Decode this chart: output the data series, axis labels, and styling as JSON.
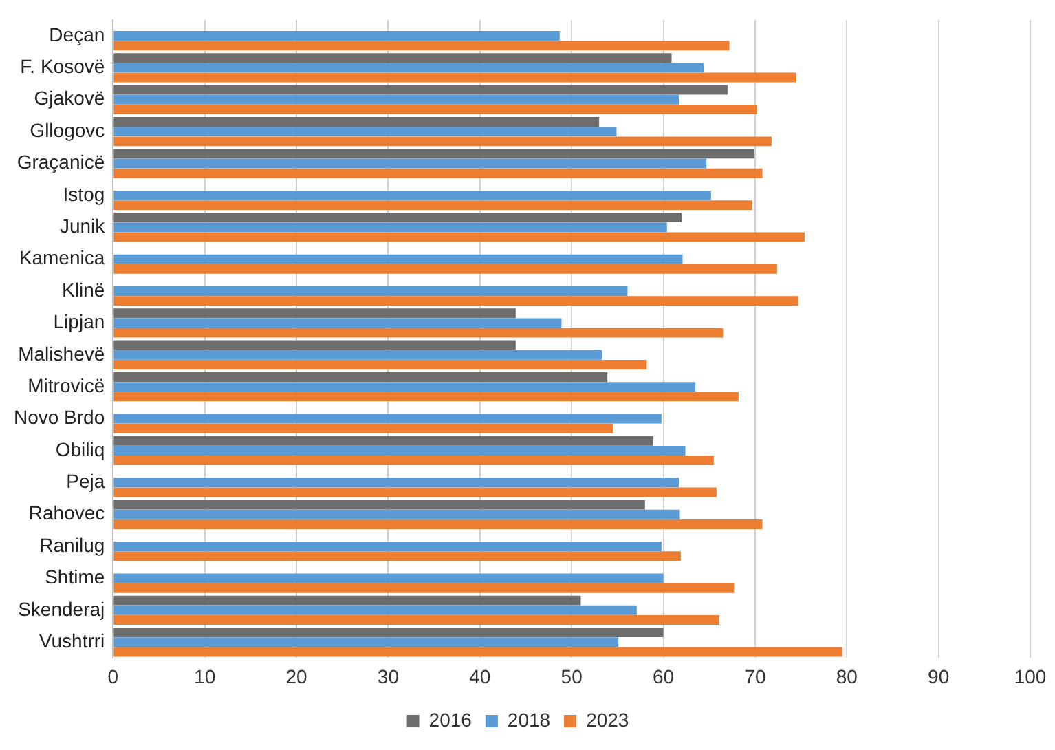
{
  "chart_data": {
    "type": "bar",
    "orientation": "horizontal",
    "categories": [
      "Deçan",
      "F. Kosovë",
      "Gjakovë",
      "Gllogovc",
      "Graçanicë",
      "Istog",
      "Junik",
      "Kamenica",
      "Klinë",
      "Lipjan",
      "Malishevë",
      "Mitrovicë",
      "Novo Brdo",
      "Obiliq",
      "Peja",
      "Rahovec",
      "Ranilug",
      "Shtime",
      "Skenderaj",
      "Vushtrri"
    ],
    "series": [
      {
        "name": "2016",
        "color": "#6d6d6d",
        "values": [
          null,
          60.9,
          67.0,
          53.0,
          69.9,
          null,
          62.0,
          null,
          null,
          43.9,
          43.9,
          53.9,
          null,
          58.9,
          null,
          58.0,
          null,
          null,
          51.0,
          60.0
        ]
      },
      {
        "name": "2018",
        "color": "#5b9bd5",
        "values": [
          48.7,
          64.4,
          61.7,
          54.9,
          64.7,
          65.2,
          60.4,
          62.1,
          56.1,
          48.9,
          53.3,
          63.5,
          59.8,
          62.4,
          61.7,
          61.8,
          59.8,
          60.0,
          57.1,
          55.1
        ]
      },
      {
        "name": "2023",
        "color": "#ed7d31",
        "values": [
          67.2,
          74.5,
          70.2,
          71.8,
          70.8,
          69.7,
          75.4,
          72.4,
          74.7,
          66.5,
          58.2,
          68.2,
          54.5,
          65.5,
          65.8,
          70.8,
          61.9,
          67.7,
          66.1,
          79.5
        ]
      }
    ],
    "xlim": [
      0,
      100
    ],
    "xticks": [
      0,
      10,
      20,
      30,
      40,
      50,
      60,
      70,
      80,
      90,
      100
    ],
    "grid": "x",
    "legend": "bottom"
  }
}
